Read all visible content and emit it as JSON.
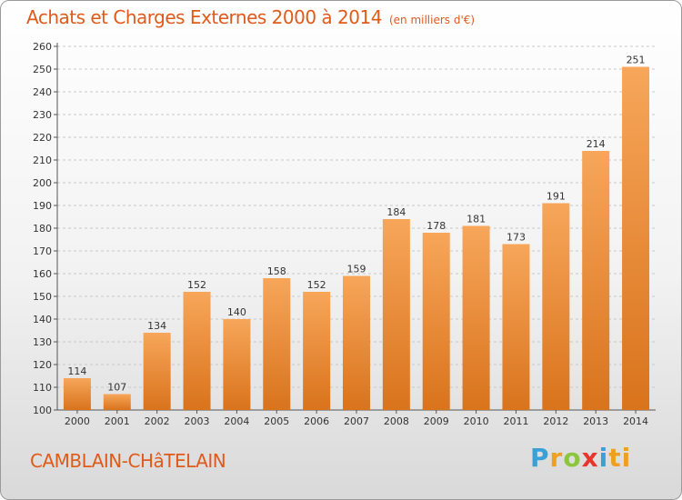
{
  "header": {
    "title": "Achats et Charges Externes 2000 à 2014",
    "subtitle": "(en milliers d'€)"
  },
  "footer": {
    "commune": "CAMBLAIN-CHâTELAIN",
    "logo_letters": [
      "P",
      "r",
      "o",
      "x",
      "i",
      "ti"
    ]
  },
  "colors": {
    "bar_top": "#f7a65a",
    "bar_bottom": "#d9731c",
    "title": "#e05a1a"
  },
  "chart_data": {
    "type": "bar",
    "title": "Achats et Charges Externes 2000 à 2014",
    "subtitle": "(en milliers d'€)",
    "xlabel": "",
    "ylabel": "",
    "categories": [
      "2000",
      "2001",
      "2002",
      "2003",
      "2004",
      "2005",
      "2006",
      "2007",
      "2008",
      "2009",
      "2010",
      "2011",
      "2012",
      "2013",
      "2014"
    ],
    "values": [
      114,
      107,
      134,
      152,
      140,
      158,
      152,
      159,
      184,
      178,
      181,
      173,
      191,
      214,
      251
    ],
    "ylim": [
      100,
      260
    ],
    "yticks": [
      100,
      110,
      120,
      130,
      140,
      150,
      160,
      170,
      180,
      190,
      200,
      210,
      220,
      230,
      240,
      250,
      260
    ],
    "grid": true,
    "legend": "none"
  }
}
